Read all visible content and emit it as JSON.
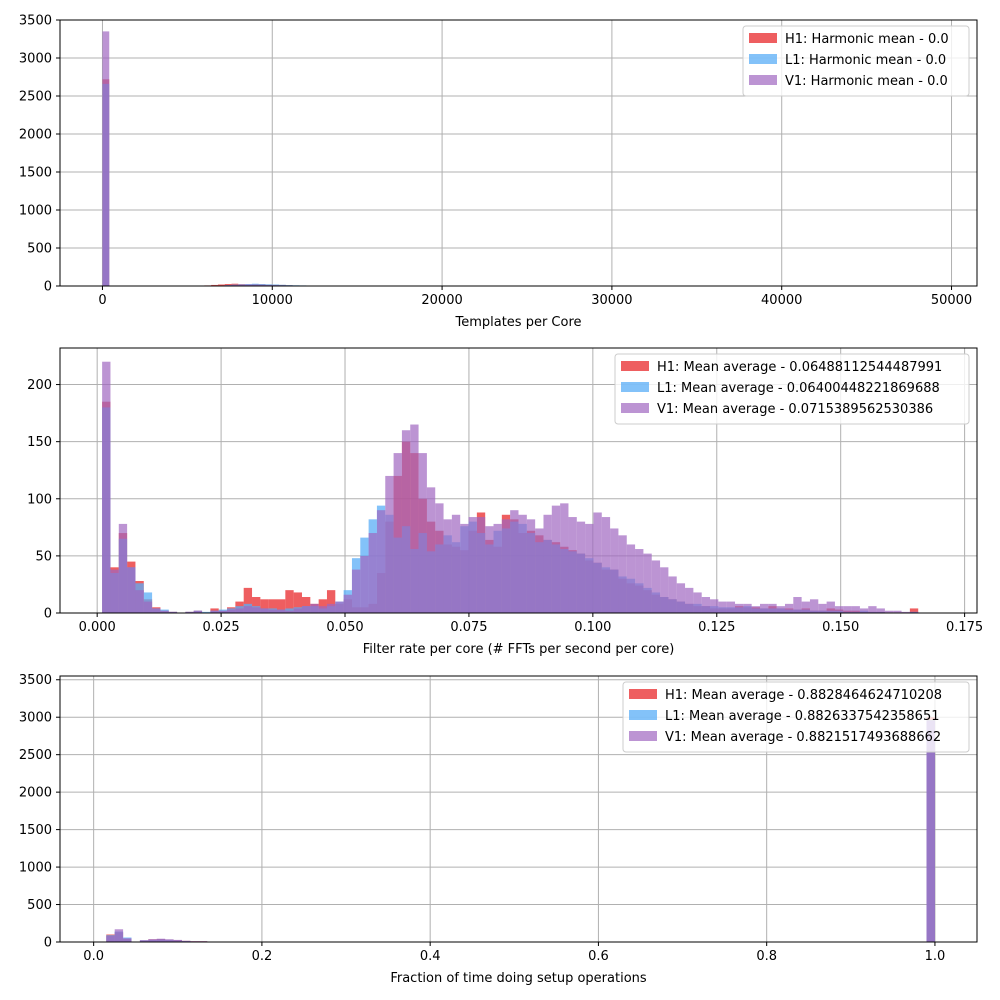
{
  "chart_data": [
    {
      "type": "histogram",
      "xlabel": "Templates per Core",
      "ylabel": "",
      "xlim": [
        -2500,
        51500
      ],
      "ylim": [
        0,
        3500
      ],
      "xticks": [
        0,
        10000,
        20000,
        30000,
        40000,
        50000
      ],
      "xtick_labels": [
        "0",
        "10000",
        "20000",
        "30000",
        "40000",
        "50000"
      ],
      "yticks": [
        0,
        500,
        1000,
        1500,
        2000,
        2500,
        3000,
        3500
      ],
      "ytick_labels": [
        "0",
        "500",
        "1000",
        "1500",
        "2000",
        "2500",
        "3000",
        "3500"
      ],
      "grid": true,
      "legend_position": "top-right",
      "series": [
        {
          "name": "H1: Harmonic mean  - 0.0",
          "color": "#e8282b",
          "opacity": 0.75,
          "bins": [
            [
              0,
              400,
              2720
            ],
            [
              6000,
              6400,
              8
            ],
            [
              6400,
              6800,
              14
            ],
            [
              6800,
              7200,
              20
            ],
            [
              7200,
              7600,
              26
            ],
            [
              7600,
              8000,
              30
            ],
            [
              8000,
              8400,
              24
            ],
            [
              8400,
              8800,
              20
            ],
            [
              8800,
              9200,
              24
            ],
            [
              9200,
              9600,
              22
            ],
            [
              9600,
              10000,
              18
            ],
            [
              10000,
              10400,
              16
            ],
            [
              10400,
              10800,
              14
            ],
            [
              10800,
              11200,
              10
            ],
            [
              11200,
              11600,
              6
            ]
          ]
        },
        {
          "name": "L1: Harmonic mean  - 0.0",
          "color": "#5aaef7",
          "opacity": 0.75,
          "bins": [
            [
              0,
              400,
              2660
            ],
            [
              7200,
              7600,
              12
            ],
            [
              7600,
              8000,
              18
            ],
            [
              8000,
              8400,
              22
            ],
            [
              8400,
              8800,
              26
            ],
            [
              8800,
              9200,
              30
            ],
            [
              9200,
              9600,
              26
            ],
            [
              9600,
              10000,
              22
            ],
            [
              10000,
              10400,
              20
            ],
            [
              10400,
              10800,
              16
            ],
            [
              10800,
              11200,
              12
            ],
            [
              11200,
              11600,
              10
            ],
            [
              11600,
              12000,
              8
            ],
            [
              12000,
              12400,
              6
            ],
            [
              12400,
              12800,
              4
            ],
            [
              12800,
              13200,
              3
            ],
            [
              13200,
              13600,
              2
            ]
          ]
        },
        {
          "name": "V1: Harmonic mean  - 0.0",
          "color": "#a066c0",
          "opacity": 0.7,
          "bins": [
            [
              0,
              400,
              3350
            ],
            [
              7200,
              7600,
              10
            ],
            [
              7600,
              8000,
              14
            ],
            [
              8000,
              8400,
              18
            ],
            [
              8400,
              8800,
              20
            ],
            [
              8800,
              9200,
              18
            ],
            [
              9200,
              9600,
              16
            ],
            [
              9600,
              10000,
              12
            ],
            [
              10000,
              10400,
              10
            ],
            [
              10400,
              10800,
              8
            ],
            [
              10800,
              11200,
              6
            ]
          ]
        }
      ]
    },
    {
      "type": "histogram",
      "xlabel": "Filter rate per core (# FFTs per second per core)",
      "ylabel": "",
      "xlim": [
        -0.0075,
        0.1775
      ],
      "ylim": [
        0,
        232
      ],
      "xticks": [
        0.0,
        0.025,
        0.05,
        0.075,
        0.1,
        0.125,
        0.15,
        0.175
      ],
      "xtick_labels": [
        "0.000",
        "0.025",
        "0.050",
        "0.075",
        "0.100",
        "0.125",
        "0.150",
        "0.175"
      ],
      "yticks": [
        0,
        50,
        100,
        150,
        200
      ],
      "ytick_labels": [
        "0",
        "50",
        "100",
        "150",
        "200"
      ],
      "grid": true,
      "legend_position": "top-right",
      "series": [
        {
          "name": "H1: Mean average - 0.06488112544487991",
          "color": "#e8282b",
          "opacity": 0.75,
          "start": 0.001,
          "width": 0.00168,
          "values": [
            185,
            40,
            70,
            45,
            28,
            12,
            5,
            2,
            1,
            0,
            1,
            2,
            0,
            4,
            2,
            5,
            10,
            22,
            14,
            12,
            12,
            12,
            20,
            18,
            14,
            8,
            12,
            20,
            8,
            12,
            5,
            5,
            8,
            35,
            80,
            120,
            150,
            140,
            100,
            80,
            72,
            60,
            58,
            55,
            72,
            88,
            64,
            58,
            86,
            82,
            70,
            72,
            68,
            64,
            62,
            58,
            55,
            52,
            46,
            44,
            38,
            38,
            30,
            26,
            24,
            20,
            16,
            14,
            12,
            10,
            8,
            6,
            6,
            4,
            4,
            4,
            6,
            5,
            5,
            4,
            6,
            4,
            4,
            3,
            4,
            2,
            2,
            4,
            3,
            2,
            2,
            1,
            1,
            1,
            0,
            0,
            0,
            4
          ]
        },
        {
          "name": "L1: Mean average - 0.06400448221869688",
          "color": "#5aaef7",
          "opacity": 0.75,
          "start": 0.001,
          "width": 0.00168,
          "values": [
            180,
            35,
            65,
            40,
            26,
            18,
            4,
            3,
            1,
            0,
            1,
            2,
            1,
            2,
            3,
            4,
            6,
            8,
            6,
            4,
            4,
            3,
            4,
            5,
            6,
            6,
            4,
            6,
            10,
            20,
            48,
            66,
            82,
            94,
            86,
            66,
            76,
            56,
            70,
            54,
            60,
            68,
            62,
            76,
            80,
            70,
            60,
            72,
            74,
            80,
            78,
            70,
            62,
            64,
            60,
            56,
            54,
            52,
            48,
            44,
            40,
            38,
            32,
            30,
            26,
            22,
            18,
            14,
            12,
            10,
            8,
            8,
            6,
            6,
            5,
            5,
            5,
            6,
            4,
            4,
            4,
            4,
            3,
            3,
            3,
            2,
            2,
            2,
            2,
            1,
            1,
            2,
            1,
            1,
            0,
            0,
            0,
            1
          ]
        },
        {
          "name": "V1: Mean average - 0.0715389562530386",
          "color": "#a066c0",
          "opacity": 0.7,
          "start": 0.001,
          "width": 0.00168,
          "values": [
            220,
            38,
            78,
            40,
            20,
            10,
            4,
            2,
            1,
            0,
            1,
            2,
            0,
            2,
            2,
            3,
            4,
            6,
            5,
            4,
            3,
            3,
            2,
            4,
            6,
            8,
            6,
            8,
            10,
            16,
            38,
            50,
            70,
            90,
            120,
            140,
            160,
            165,
            140,
            110,
            96,
            82,
            86,
            78,
            84,
            84,
            76,
            78,
            82,
            90,
            86,
            82,
            74,
            86,
            94,
            96,
            84,
            80,
            78,
            88,
            84,
            74,
            68,
            60,
            56,
            52,
            46,
            40,
            32,
            26,
            22,
            18,
            14,
            12,
            10,
            10,
            8,
            8,
            6,
            8,
            8,
            6,
            8,
            14,
            10,
            12,
            8,
            10,
            6,
            6,
            6,
            4,
            6,
            4,
            2,
            2,
            1,
            1
          ]
        }
      ]
    },
    {
      "type": "histogram",
      "xlabel": "Fraction of time doing setup operations",
      "ylabel": "",
      "xlim": [
        -0.04,
        1.05
      ],
      "ylim": [
        0,
        3550
      ],
      "xticks": [
        0.0,
        0.2,
        0.4,
        0.6,
        0.8,
        1.0
      ],
      "xtick_labels": [
        "0.0",
        "0.2",
        "0.4",
        "0.6",
        "0.8",
        "1.0"
      ],
      "yticks": [
        0,
        500,
        1000,
        1500,
        2000,
        2500,
        3000,
        3500
      ],
      "ytick_labels": [
        "0",
        "500",
        "1000",
        "1500",
        "2000",
        "2500",
        "3000",
        "3500"
      ],
      "grid": true,
      "legend_position": "top-right",
      "series": [
        {
          "name": "H1: Mean average - 0.8828464624710208",
          "color": "#e8282b",
          "opacity": 0.75,
          "bins": [
            [
              0.015,
              0.025,
              100
            ],
            [
              0.025,
              0.035,
              130
            ],
            [
              0.035,
              0.045,
              40
            ],
            [
              0.055,
              0.065,
              20
            ],
            [
              0.065,
              0.075,
              35
            ],
            [
              0.075,
              0.085,
              40
            ],
            [
              0.085,
              0.095,
              30
            ],
            [
              0.095,
              0.105,
              25
            ],
            [
              0.105,
              0.115,
              15
            ],
            [
              0.115,
              0.135,
              10
            ],
            [
              0.135,
              0.165,
              5
            ],
            [
              0.99,
              1.0,
              3000
            ]
          ]
        },
        {
          "name": "L1: Mean average - 0.8826337542358651",
          "color": "#5aaef7",
          "opacity": 0.75,
          "bins": [
            [
              0.015,
              0.025,
              90
            ],
            [
              0.025,
              0.035,
              140
            ],
            [
              0.035,
              0.045,
              60
            ],
            [
              0.055,
              0.065,
              22
            ],
            [
              0.065,
              0.075,
              30
            ],
            [
              0.075,
              0.085,
              36
            ],
            [
              0.085,
              0.095,
              30
            ],
            [
              0.095,
              0.105,
              22
            ],
            [
              0.105,
              0.115,
              14
            ],
            [
              0.115,
              0.135,
              8
            ],
            [
              0.135,
              0.165,
              4
            ],
            [
              0.99,
              1.0,
              2960
            ]
          ]
        },
        {
          "name": "V1: Mean average - 0.8821517493688662",
          "color": "#a066c0",
          "opacity": 0.7,
          "bins": [
            [
              0.015,
              0.025,
              80
            ],
            [
              0.025,
              0.035,
              170
            ],
            [
              0.035,
              0.045,
              50
            ],
            [
              0.055,
              0.065,
              25
            ],
            [
              0.065,
              0.075,
              38
            ],
            [
              0.075,
              0.085,
              44
            ],
            [
              0.085,
              0.095,
              36
            ],
            [
              0.095,
              0.105,
              28
            ],
            [
              0.105,
              0.115,
              16
            ],
            [
              0.115,
              0.135,
              10
            ],
            [
              0.135,
              0.165,
              5
            ],
            [
              0.99,
              1.0,
              2950
            ]
          ]
        }
      ]
    }
  ]
}
